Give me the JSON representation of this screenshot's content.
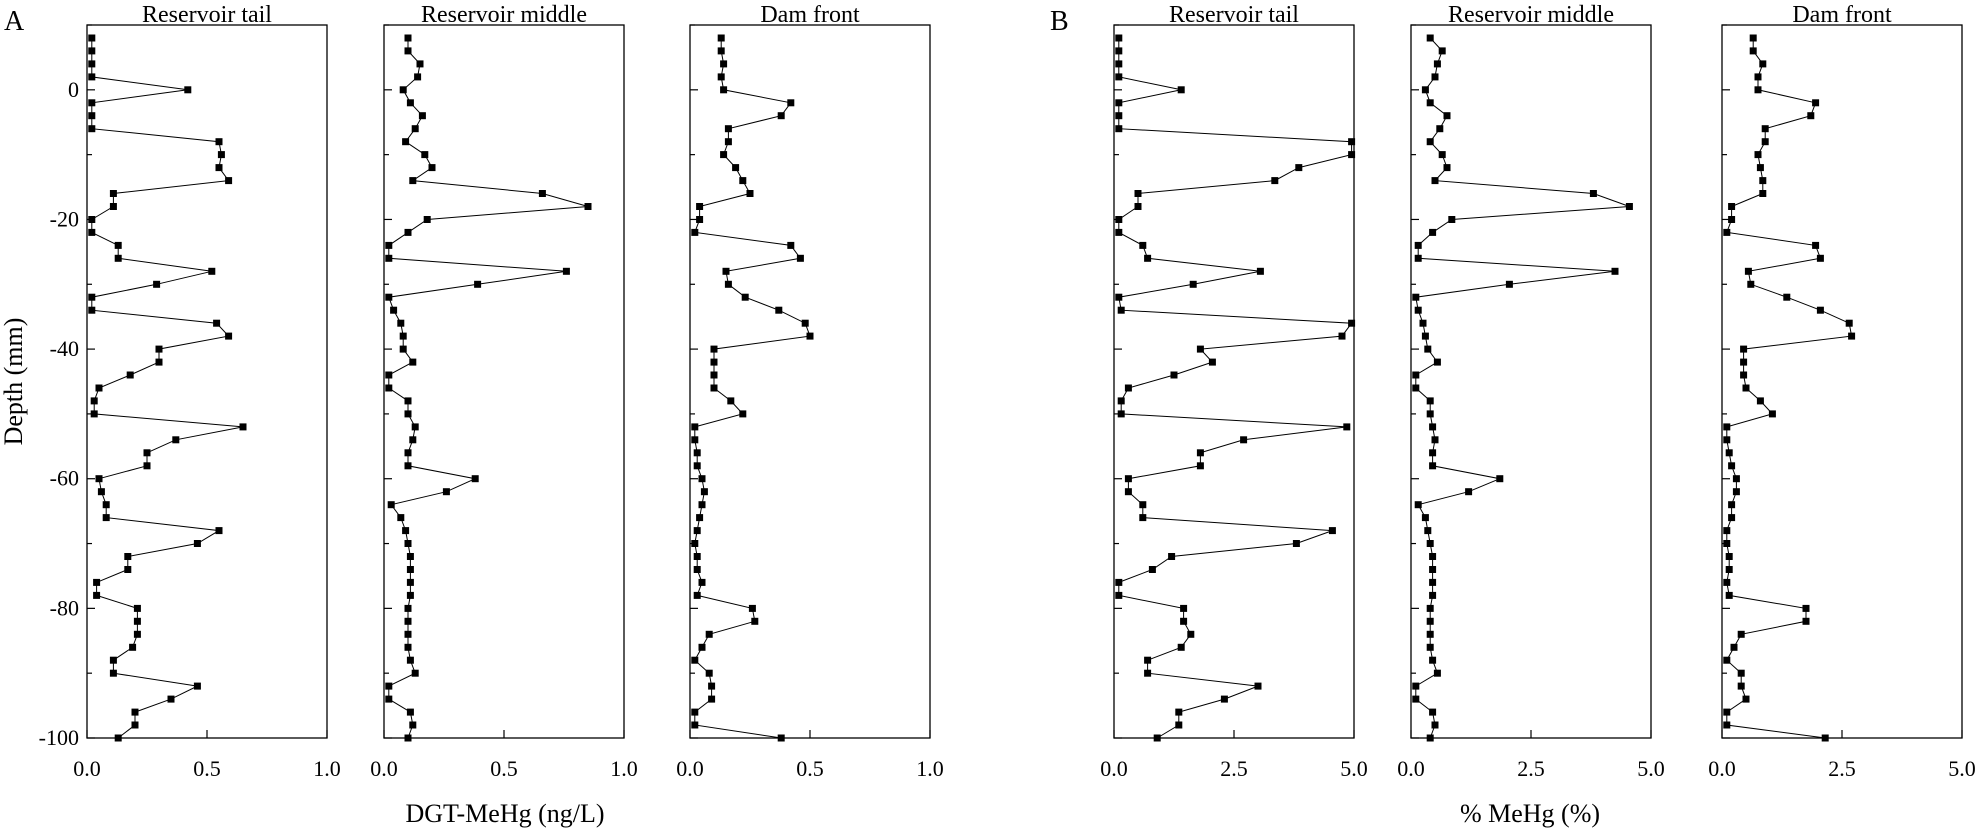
{
  "chart_data": {
    "type": "line",
    "ylabel": "Depth (mm)",
    "ylim": [
      -100,
      10
    ],
    "yticks": [
      0,
      -20,
      -40,
      -60,
      -80,
      -100
    ],
    "grid": false,
    "depth": [
      8,
      6,
      4,
      2,
      0,
      -2,
      -4,
      -6,
      -8,
      -10,
      -12,
      -14,
      -16,
      -18,
      -20,
      -22,
      -24,
      -26,
      -28,
      -30,
      -32,
      -34,
      -36,
      -38,
      -40,
      -42,
      -44,
      -46,
      -48,
      -50,
      -52,
      -54,
      -56,
      -58,
      -60,
      -62,
      -64,
      -66,
      -68,
      -70,
      -72,
      -74,
      -76,
      -78,
      -80,
      -82,
      -84,
      -86,
      -88,
      -90,
      -92,
      -94,
      -96,
      -98,
      -100
    ],
    "groups": [
      {
        "letter": "A",
        "xlabel": "DGT-MeHg (ng/L)",
        "xlim": [
          0,
          1
        ],
        "xticks": [
          "0.0",
          "0.5",
          "1.0"
        ],
        "panels": [
          {
            "title": "Reservoir tail",
            "values": [
              0.02,
              0.02,
              0.02,
              0.02,
              0.42,
              0.02,
              0.02,
              0.02,
              0.55,
              0.56,
              0.55,
              0.59,
              0.11,
              0.11,
              0.02,
              0.02,
              0.13,
              0.13,
              0.52,
              0.29,
              0.02,
              0.02,
              0.54,
              0.59,
              0.3,
              0.3,
              0.18,
              0.05,
              0.03,
              0.03,
              0.65,
              0.37,
              0.25,
              0.25,
              0.05,
              0.06,
              0.08,
              0.08,
              0.55,
              0.46,
              0.17,
              0.17,
              0.04,
              0.04,
              0.21,
              0.21,
              0.21,
              0.19,
              0.11,
              0.11,
              0.46,
              0.35,
              0.2,
              0.2,
              0.13
            ]
          },
          {
            "title": "Reservoir middle",
            "values": [
              0.1,
              0.1,
              0.15,
              0.14,
              0.08,
              0.11,
              0.16,
              0.13,
              0.09,
              0.17,
              0.2,
              0.12,
              0.66,
              0.85,
              0.18,
              0.1,
              0.02,
              0.02,
              0.76,
              0.39,
              0.02,
              0.04,
              0.07,
              0.08,
              0.08,
              0.12,
              0.02,
              0.02,
              0.1,
              0.1,
              0.13,
              0.12,
              0.1,
              0.1,
              0.38,
              0.26,
              0.03,
              0.07,
              0.09,
              0.1,
              0.11,
              0.11,
              0.11,
              0.11,
              0.1,
              0.1,
              0.1,
              0.1,
              0.11,
              0.13,
              0.02,
              0.02,
              0.11,
              0.12,
              0.1
            ]
          },
          {
            "title": "Dam front",
            "values": [
              0.13,
              0.13,
              0.14,
              0.13,
              0.14,
              0.42,
              0.38,
              0.16,
              0.16,
              0.14,
              0.19,
              0.22,
              0.25,
              0.04,
              0.04,
              0.02,
              0.42,
              0.46,
              0.15,
              0.16,
              0.23,
              0.37,
              0.48,
              0.5,
              0.1,
              0.1,
              0.1,
              0.1,
              0.17,
              0.22,
              0.02,
              0.02,
              0.03,
              0.03,
              0.05,
              0.06,
              0.05,
              0.04,
              0.03,
              0.02,
              0.03,
              0.03,
              0.05,
              0.03,
              0.26,
              0.27,
              0.08,
              0.05,
              0.02,
              0.08,
              0.09,
              0.09,
              0.02,
              0.02,
              0.38
            ]
          }
        ]
      },
      {
        "letter": "B",
        "xlabel": "% MeHg (%)",
        "xlim": [
          0,
          5
        ],
        "xticks": [
          "0.0",
          "2.5",
          "5.0"
        ],
        "panels": [
          {
            "title": "Reservoir tail",
            "values": [
              0.1,
              0.1,
              0.1,
              0.1,
              1.4,
              0.1,
              0.1,
              0.1,
              4.95,
              4.95,
              3.85,
              3.35,
              0.5,
              0.5,
              0.1,
              0.1,
              0.6,
              0.7,
              3.05,
              1.65,
              0.1,
              0.15,
              4.95,
              4.75,
              1.8,
              2.05,
              1.25,
              0.3,
              0.15,
              0.15,
              4.85,
              2.7,
              1.8,
              1.8,
              0.3,
              0.3,
              0.6,
              0.6,
              4.55,
              3.8,
              1.2,
              0.8,
              0.1,
              0.1,
              1.45,
              1.45,
              1.6,
              1.4,
              0.7,
              0.7,
              3.0,
              2.3,
              1.35,
              1.35,
              0.9
            ]
          },
          {
            "title": "Reservoir middle",
            "values": [
              0.4,
              0.65,
              0.55,
              0.5,
              0.3,
              0.4,
              0.75,
              0.6,
              0.4,
              0.65,
              0.75,
              0.5,
              3.8,
              4.55,
              0.85,
              0.45,
              0.15,
              0.15,
              4.25,
              2.05,
              0.1,
              0.15,
              0.25,
              0.3,
              0.35,
              0.55,
              0.1,
              0.1,
              0.4,
              0.4,
              0.45,
              0.5,
              0.45,
              0.45,
              1.85,
              1.2,
              0.15,
              0.3,
              0.35,
              0.4,
              0.45,
              0.45,
              0.45,
              0.45,
              0.4,
              0.4,
              0.4,
              0.4,
              0.45,
              0.55,
              0.1,
              0.1,
              0.45,
              0.5,
              0.4
            ]
          },
          {
            "title": "Dam front",
            "values": [
              0.65,
              0.65,
              0.85,
              0.75,
              0.75,
              1.95,
              1.85,
              0.9,
              0.9,
              0.75,
              0.8,
              0.85,
              0.85,
              0.2,
              0.2,
              0.1,
              1.95,
              2.05,
              0.55,
              0.6,
              1.35,
              2.05,
              2.65,
              2.7,
              0.45,
              0.45,
              0.45,
              0.5,
              0.8,
              1.05,
              0.1,
              0.1,
              0.15,
              0.2,
              0.3,
              0.3,
              0.2,
              0.2,
              0.1,
              0.1,
              0.15,
              0.15,
              0.1,
              0.15,
              1.75,
              1.75,
              0.4,
              0.25,
              0.1,
              0.4,
              0.4,
              0.5,
              0.1,
              0.1,
              2.15
            ]
          }
        ]
      }
    ]
  }
}
